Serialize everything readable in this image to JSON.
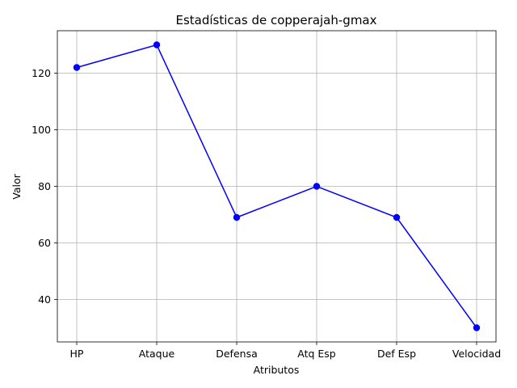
{
  "chart_data": {
    "type": "line",
    "title": "Estadísticas de copperajah-gmax",
    "xlabel": "Atributos",
    "ylabel": "Valor",
    "categories": [
      "HP",
      "Ataque",
      "Defensa",
      "Atq Esp",
      "Def Esp",
      "Velocidad"
    ],
    "series": [
      {
        "values": [
          122,
          130,
          69,
          80,
          69,
          30
        ],
        "color": "#0000ff",
        "marker": "circle"
      }
    ],
    "ylim": [
      25,
      135
    ],
    "yticks": [
      40,
      60,
      80,
      100,
      120
    ],
    "grid": true
  }
}
